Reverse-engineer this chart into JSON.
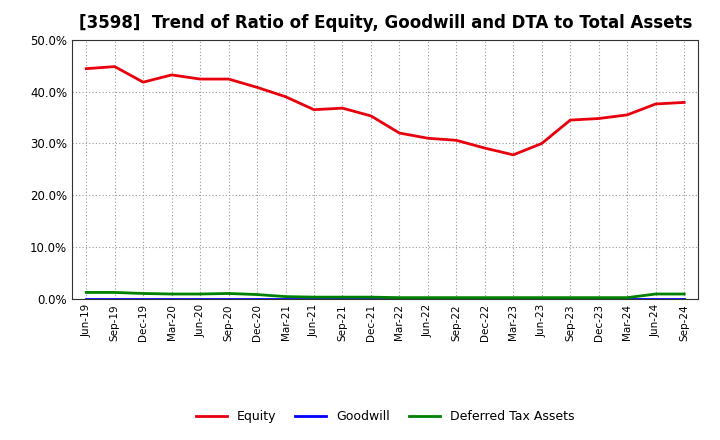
{
  "title": "[3598]  Trend of Ratio of Equity, Goodwill and DTA to Total Assets",
  "x_labels": [
    "Jun-19",
    "Sep-19",
    "Dec-19",
    "Mar-20",
    "Jun-20",
    "Sep-20",
    "Dec-20",
    "Mar-21",
    "Jun-21",
    "Sep-21",
    "Dec-21",
    "Mar-22",
    "Jun-22",
    "Sep-22",
    "Dec-22",
    "Mar-23",
    "Jun-23",
    "Sep-23",
    "Dec-23",
    "Mar-24",
    "Jun-24",
    "Sep-24"
  ],
  "equity": [
    0.444,
    0.448,
    0.418,
    0.432,
    0.424,
    0.424,
    0.408,
    0.39,
    0.365,
    0.368,
    0.353,
    0.32,
    0.31,
    0.306,
    0.291,
    0.278,
    0.3,
    0.345,
    0.348,
    0.355,
    0.376,
    0.379
  ],
  "goodwill": [
    0.0,
    0.0,
    0.0,
    0.0,
    0.0,
    0.0,
    0.0,
    0.0,
    0.0,
    0.0,
    0.0,
    0.0,
    0.0,
    0.0,
    0.0,
    0.0,
    0.0,
    0.0,
    0.0,
    0.0,
    0.0,
    0.0
  ],
  "dta": [
    0.013,
    0.013,
    0.011,
    0.01,
    0.01,
    0.011,
    0.009,
    0.005,
    0.004,
    0.004,
    0.004,
    0.003,
    0.003,
    0.003,
    0.003,
    0.003,
    0.003,
    0.003,
    0.003,
    0.003,
    0.01,
    0.01
  ],
  "equity_color": "#e8000d",
  "goodwill_color": "#0000ff",
  "dta_color": "#008000",
  "ylim": [
    0.0,
    0.5
  ],
  "yticks": [
    0.0,
    0.1,
    0.2,
    0.3,
    0.4,
    0.5
  ],
  "bg_color": "#ffffff",
  "grid_color": "#999999",
  "title_fontsize": 12,
  "legend_labels": [
    "Equity",
    "Goodwill",
    "Deferred Tax Assets"
  ],
  "line_width": 2.0
}
